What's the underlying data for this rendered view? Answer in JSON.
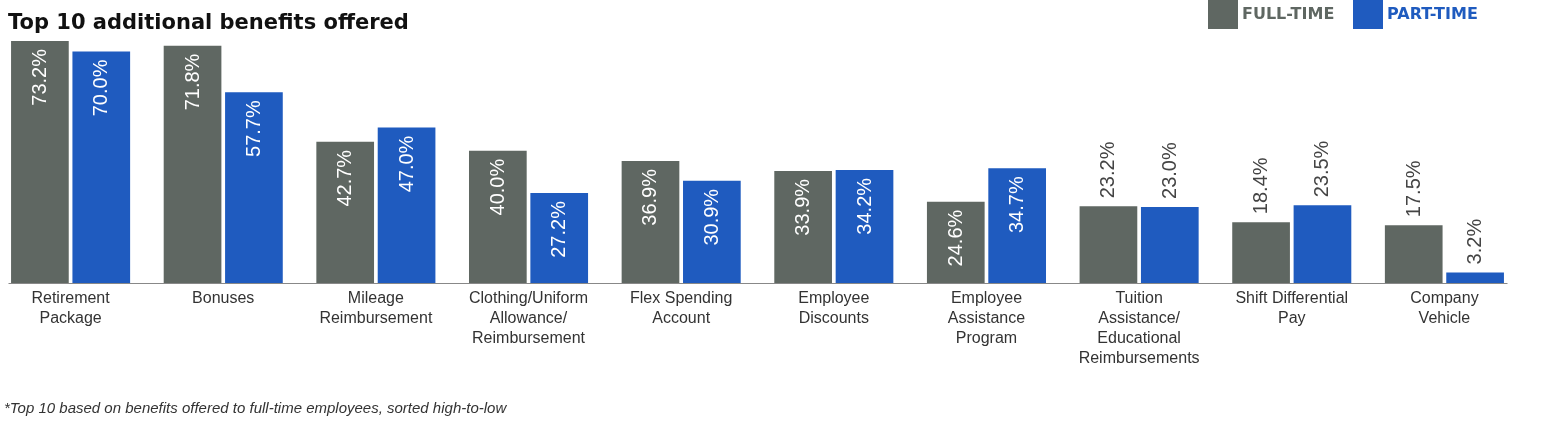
{
  "chart_data": {
    "type": "bar",
    "title": "Top 10 additional benefits offered",
    "categories": [
      "Retirement\nPackage",
      "Bonuses",
      "Mileage\nReimbursement",
      "Clothing/Uniform\nAllowance/\nReimbursement",
      "Flex Spending\nAccount",
      "Employee\nDiscounts",
      "Employee\nAssistance\nProgram",
      "Tuition\nAssistance/\nEducational\nReimbursements",
      "Shift Differential\nPay",
      "Company\nVehicle"
    ],
    "series": [
      {
        "name": "FULL-TIME",
        "color": "#5f6762",
        "values": [
          73.2,
          71.8,
          42.7,
          40.0,
          36.9,
          33.9,
          24.6,
          23.2,
          18.4,
          17.5
        ],
        "value_labels": [
          "73.2%",
          "71.8%",
          "42.7%",
          "40.0%",
          "36.9%",
          "33.9%",
          "24.6%",
          "23.2%",
          "18.4%",
          "17.5%"
        ]
      },
      {
        "name": "PART-TIME",
        "color": "#1f5bbf",
        "values": [
          70.0,
          57.7,
          47.0,
          27.2,
          30.9,
          34.2,
          34.7,
          23.0,
          23.5,
          3.2
        ],
        "value_labels": [
          "70.0%",
          "57.7%",
          "47.0%",
          "27.2%",
          "30.9%",
          "34.2%",
          "34.7%",
          "23.0%",
          "23.5%",
          "3.2%"
        ]
      }
    ],
    "legend": "top right",
    "annotations": [
      "*Top 10 based on benefits offered to full-time employees, sorted high-to-low"
    ]
  }
}
